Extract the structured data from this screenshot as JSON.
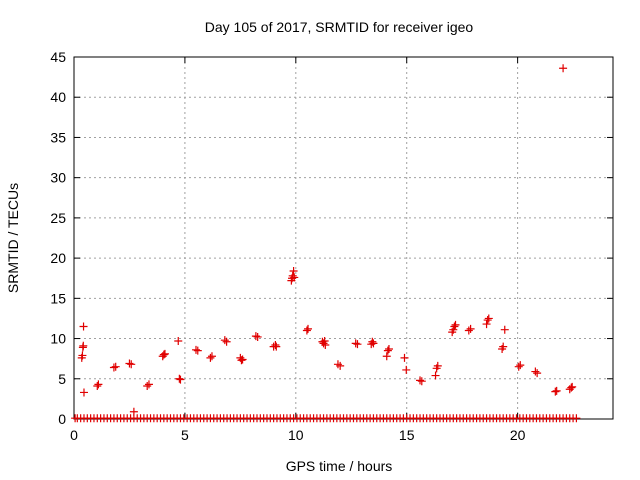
{
  "chart_data": {
    "type": "scatter",
    "title": "Day 105 of 2017, SRMTID for receiver igeo",
    "xlabel": "GPS time / hours",
    "ylabel": "SRMTID / TECUs",
    "xlim": [
      0,
      24.3
    ],
    "ylim": [
      0,
      45
    ],
    "xticks": [
      0,
      5,
      10,
      15,
      20
    ],
    "yticks": [
      0,
      5,
      10,
      15,
      20,
      25,
      30,
      35,
      40,
      45
    ],
    "grid": true,
    "marker": "+",
    "color": "#e00000",
    "series": [
      {
        "name": "SRMTID",
        "points": [
          [
            0.3,
            0.1
          ],
          [
            0.45,
            0.1
          ],
          [
            0.6,
            0.1
          ],
          [
            0.75,
            0.1
          ],
          [
            0.9,
            0.1
          ],
          [
            1.05,
            0.1
          ],
          [
            1.2,
            0.1
          ],
          [
            1.35,
            0.1
          ],
          [
            1.5,
            0.1
          ],
          [
            1.65,
            0.1
          ],
          [
            1.8,
            0.1
          ],
          [
            1.95,
            0.1
          ],
          [
            2.1,
            0.1
          ],
          [
            2.25,
            0.1
          ],
          [
            2.4,
            0.1
          ],
          [
            2.55,
            0.1
          ],
          [
            2.7,
            0.1
          ],
          [
            2.85,
            0.1
          ],
          [
            3.0,
            0.1
          ],
          [
            3.15,
            0.1
          ],
          [
            3.3,
            0.1
          ],
          [
            3.45,
            0.1
          ],
          [
            3.6,
            0.1
          ],
          [
            3.75,
            0.1
          ],
          [
            3.9,
            0.1
          ],
          [
            4.05,
            0.1
          ],
          [
            4.2,
            0.1
          ],
          [
            4.35,
            0.1
          ],
          [
            4.5,
            0.1
          ],
          [
            4.65,
            0.1
          ],
          [
            4.8,
            0.1
          ],
          [
            4.95,
            0.1
          ],
          [
            5.1,
            0.1
          ],
          [
            5.25,
            0.1
          ],
          [
            5.4,
            0.1
          ],
          [
            5.55,
            0.1
          ],
          [
            5.7,
            0.1
          ],
          [
            5.85,
            0.1
          ],
          [
            6.0,
            0.1
          ],
          [
            6.15,
            0.1
          ],
          [
            6.3,
            0.1
          ],
          [
            6.45,
            0.1
          ],
          [
            6.6,
            0.1
          ],
          [
            6.75,
            0.1
          ],
          [
            6.9,
            0.1
          ],
          [
            7.05,
            0.1
          ],
          [
            7.2,
            0.1
          ],
          [
            7.35,
            0.1
          ],
          [
            7.5,
            0.1
          ],
          [
            7.65,
            0.1
          ],
          [
            7.8,
            0.1
          ],
          [
            7.95,
            0.1
          ],
          [
            8.1,
            0.1
          ],
          [
            8.25,
            0.1
          ],
          [
            8.4,
            0.1
          ],
          [
            8.55,
            0.1
          ],
          [
            8.7,
            0.1
          ],
          [
            8.85,
            0.1
          ],
          [
            9.0,
            0.1
          ],
          [
            9.15,
            0.1
          ],
          [
            9.3,
            0.1
          ],
          [
            9.45,
            0.1
          ],
          [
            9.6,
            0.1
          ],
          [
            9.75,
            0.1
          ],
          [
            9.9,
            0.1
          ],
          [
            10.05,
            0.1
          ],
          [
            10.2,
            0.1
          ],
          [
            10.35,
            0.1
          ],
          [
            10.5,
            0.1
          ],
          [
            10.65,
            0.1
          ],
          [
            10.8,
            0.1
          ],
          [
            10.95,
            0.1
          ],
          [
            11.1,
            0.1
          ],
          [
            11.25,
            0.1
          ],
          [
            11.4,
            0.1
          ],
          [
            11.55,
            0.1
          ],
          [
            11.7,
            0.1
          ],
          [
            11.85,
            0.1
          ],
          [
            12.0,
            0.1
          ],
          [
            12.15,
            0.1
          ],
          [
            12.3,
            0.1
          ],
          [
            12.45,
            0.1
          ],
          [
            12.6,
            0.1
          ],
          [
            12.75,
            0.1
          ],
          [
            12.9,
            0.1
          ],
          [
            13.05,
            0.1
          ],
          [
            13.2,
            0.1
          ],
          [
            13.35,
            0.1
          ],
          [
            13.5,
            0.1
          ],
          [
            13.65,
            0.1
          ],
          [
            13.8,
            0.1
          ],
          [
            13.95,
            0.1
          ],
          [
            14.1,
            0.1
          ],
          [
            14.25,
            0.1
          ],
          [
            14.4,
            0.1
          ],
          [
            14.55,
            0.1
          ],
          [
            14.7,
            0.1
          ],
          [
            14.85,
            0.1
          ],
          [
            15.0,
            0.1
          ],
          [
            15.15,
            0.1
          ],
          [
            15.3,
            0.1
          ],
          [
            15.45,
            0.1
          ],
          [
            15.6,
            0.1
          ],
          [
            15.75,
            0.1
          ],
          [
            15.9,
            0.1
          ],
          [
            16.05,
            0.1
          ],
          [
            16.2,
            0.1
          ],
          [
            16.35,
            0.1
          ],
          [
            16.5,
            0.1
          ],
          [
            16.65,
            0.1
          ],
          [
            16.8,
            0.1
          ],
          [
            16.95,
            0.1
          ],
          [
            17.1,
            0.1
          ],
          [
            17.25,
            0.1
          ],
          [
            17.4,
            0.1
          ],
          [
            17.55,
            0.1
          ],
          [
            17.7,
            0.1
          ],
          [
            17.85,
            0.1
          ],
          [
            18.0,
            0.1
          ],
          [
            18.15,
            0.1
          ],
          [
            18.3,
            0.1
          ],
          [
            18.45,
            0.1
          ],
          [
            18.6,
            0.1
          ],
          [
            18.75,
            0.1
          ],
          [
            18.9,
            0.1
          ],
          [
            19.05,
            0.1
          ],
          [
            19.2,
            0.1
          ],
          [
            19.35,
            0.1
          ],
          [
            19.5,
            0.1
          ],
          [
            19.65,
            0.1
          ],
          [
            19.8,
            0.1
          ],
          [
            19.95,
            0.1
          ],
          [
            20.1,
            0.1
          ],
          [
            20.25,
            0.1
          ],
          [
            20.4,
            0.1
          ],
          [
            20.55,
            0.1
          ],
          [
            20.7,
            0.1
          ],
          [
            20.85,
            0.1
          ],
          [
            21.0,
            0.1
          ],
          [
            21.15,
            0.1
          ],
          [
            21.3,
            0.1
          ],
          [
            21.45,
            0.1
          ],
          [
            21.6,
            0.1
          ],
          [
            21.75,
            0.1
          ],
          [
            21.9,
            0.1
          ],
          [
            22.05,
            0.1
          ],
          [
            22.2,
            0.1
          ],
          [
            22.35,
            0.1
          ],
          [
            22.5,
            0.1
          ],
          [
            22.65,
            0.1
          ],
          [
            0.05,
            0.1
          ],
          [
            0.15,
            0.1
          ],
          [
            0.35,
            7.6
          ],
          [
            0.38,
            7.9
          ],
          [
            0.4,
            8.9
          ],
          [
            0.42,
            9.1
          ],
          [
            0.43,
            11.5
          ],
          [
            0.45,
            3.3
          ],
          [
            1.05,
            4.1
          ],
          [
            1.1,
            4.3
          ],
          [
            1.8,
            6.4
          ],
          [
            1.88,
            6.5
          ],
          [
            2.5,
            6.9
          ],
          [
            2.58,
            6.8
          ],
          [
            2.7,
            0.9
          ],
          [
            3.3,
            4.1
          ],
          [
            3.38,
            4.3
          ],
          [
            4.0,
            7.8
          ],
          [
            4.05,
            8.0
          ],
          [
            4.1,
            8.1
          ],
          [
            4.7,
            9.7
          ],
          [
            4.75,
            5.0
          ],
          [
            4.8,
            4.9
          ],
          [
            5.5,
            8.6
          ],
          [
            5.58,
            8.5
          ],
          [
            6.15,
            7.6
          ],
          [
            6.22,
            7.8
          ],
          [
            6.8,
            9.8
          ],
          [
            6.88,
            9.6
          ],
          [
            7.5,
            7.6
          ],
          [
            7.55,
            7.3
          ],
          [
            7.6,
            7.4
          ],
          [
            8.2,
            10.3
          ],
          [
            8.28,
            10.2
          ],
          [
            9.0,
            9.0
          ],
          [
            9.08,
            9.2
          ],
          [
            9.12,
            9.0
          ],
          [
            9.8,
            17.2
          ],
          [
            9.83,
            17.5
          ],
          [
            9.86,
            17.8
          ],
          [
            9.9,
            18.4
          ],
          [
            9.93,
            17.6
          ],
          [
            10.5,
            11.0
          ],
          [
            10.55,
            11.2
          ],
          [
            11.2,
            9.6
          ],
          [
            11.25,
            9.4
          ],
          [
            11.3,
            9.7
          ],
          [
            11.33,
            9.2
          ],
          [
            11.9,
            6.8
          ],
          [
            12.0,
            6.6
          ],
          [
            12.7,
            9.4
          ],
          [
            12.78,
            9.3
          ],
          [
            13.4,
            9.3
          ],
          [
            13.45,
            9.6
          ],
          [
            13.5,
            9.4
          ],
          [
            14.1,
            7.8
          ],
          [
            14.15,
            8.5
          ],
          [
            14.2,
            8.7
          ],
          [
            14.9,
            7.6
          ],
          [
            14.98,
            6.1
          ],
          [
            15.6,
            4.8
          ],
          [
            15.68,
            4.7
          ],
          [
            16.3,
            5.4
          ],
          [
            16.35,
            6.3
          ],
          [
            16.4,
            6.6
          ],
          [
            17.05,
            10.8
          ],
          [
            17.1,
            11.1
          ],
          [
            17.15,
            11.5
          ],
          [
            17.2,
            11.7
          ],
          [
            17.8,
            11.0
          ],
          [
            17.88,
            11.2
          ],
          [
            18.6,
            11.8
          ],
          [
            18.65,
            12.3
          ],
          [
            18.7,
            12.5
          ],
          [
            19.3,
            8.7
          ],
          [
            19.35,
            9.0
          ],
          [
            19.42,
            11.1
          ],
          [
            20.05,
            6.5
          ],
          [
            20.12,
            6.7
          ],
          [
            20.8,
            5.9
          ],
          [
            20.88,
            5.7
          ],
          [
            21.7,
            3.4
          ],
          [
            21.76,
            3.5
          ],
          [
            22.05,
            43.6
          ],
          [
            22.35,
            3.7
          ],
          [
            22.42,
            3.9
          ],
          [
            22.46,
            4.0
          ]
        ]
      }
    ]
  }
}
